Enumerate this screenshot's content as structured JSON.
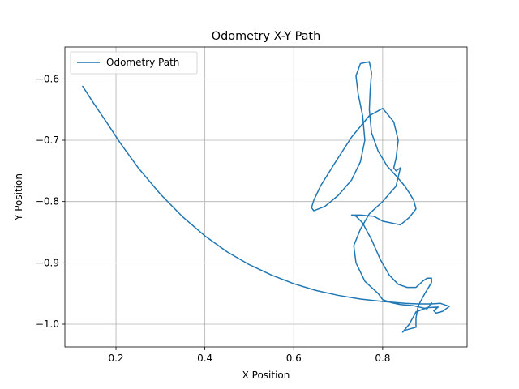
{
  "chart_data": {
    "type": "line",
    "title": "Odometry X-Y Path",
    "xlabel": "X Position",
    "ylabel": "Y Position",
    "xlim": [
      0.085,
      0.99
    ],
    "ylim": [
      -1.037,
      -0.548
    ],
    "xticks": [
      0.2,
      0.4,
      0.6,
      0.8
    ],
    "xtick_labels": [
      "0.2",
      "0.4",
      "0.6",
      "0.8"
    ],
    "yticks": [
      -1.0,
      -0.9,
      -0.8,
      -0.7,
      -0.6
    ],
    "ytick_labels": [
      "−1.0",
      "−0.9",
      "−0.8",
      "−0.7",
      "−0.6"
    ],
    "grid": true,
    "legend": {
      "position": "top-left"
    },
    "series": [
      {
        "name": "Odometry Path",
        "color": "#1f77b4",
        "x": [
          0.125,
          0.15,
          0.18,
          0.21,
          0.25,
          0.3,
          0.35,
          0.4,
          0.45,
          0.5,
          0.55,
          0.6,
          0.65,
          0.7,
          0.75,
          0.8,
          0.85,
          0.88,
          0.91,
          0.93,
          0.95,
          0.935,
          0.92,
          0.915,
          0.925,
          0.9,
          0.875,
          0.86,
          0.845,
          0.85,
          0.875,
          0.875,
          0.88,
          0.895,
          0.91,
          0.91,
          0.9,
          0.89,
          0.875,
          0.855,
          0.835,
          0.815,
          0.795,
          0.775,
          0.755,
          0.74,
          0.73,
          0.75,
          0.78,
          0.8,
          0.84,
          0.86,
          0.875,
          0.87,
          0.86,
          0.85,
          0.835,
          0.81,
          0.79,
          0.775,
          0.77,
          0.772,
          0.775,
          0.77,
          0.75,
          0.74,
          0.745,
          0.755,
          0.76,
          0.75,
          0.73,
          0.7,
          0.67,
          0.645,
          0.64,
          0.645,
          0.66,
          0.69,
          0.73,
          0.77,
          0.8,
          0.825,
          0.835,
          0.83,
          0.825,
          0.83,
          0.84,
          0.83,
          0.8,
          0.77,
          0.75,
          0.735,
          0.74,
          0.76,
          0.79,
          0.8,
          0.82,
          0.84,
          0.87,
          0.9,
          0.91
        ],
        "y": [
          -0.612,
          -0.64,
          -0.672,
          -0.705,
          -0.745,
          -0.788,
          -0.825,
          -0.856,
          -0.882,
          -0.903,
          -0.92,
          -0.934,
          -0.945,
          -0.953,
          -0.959,
          -0.963,
          -0.966,
          -0.967,
          -0.967,
          -0.966,
          -0.971,
          -0.979,
          -0.982,
          -0.978,
          -0.972,
          -0.973,
          -0.98,
          -1.0,
          -1.013,
          -1.01,
          -1.005,
          -0.99,
          -0.97,
          -0.95,
          -0.932,
          -0.925,
          -0.925,
          -0.93,
          -0.94,
          -0.94,
          -0.935,
          -0.92,
          -0.895,
          -0.862,
          -0.835,
          -0.824,
          -0.822,
          -0.822,
          -0.824,
          -0.832,
          -0.838,
          -0.826,
          -0.812,
          -0.798,
          -0.786,
          -0.775,
          -0.762,
          -0.742,
          -0.718,
          -0.688,
          -0.65,
          -0.618,
          -0.59,
          -0.572,
          -0.575,
          -0.595,
          -0.625,
          -0.66,
          -0.7,
          -0.735,
          -0.765,
          -0.79,
          -0.808,
          -0.815,
          -0.81,
          -0.798,
          -0.775,
          -0.74,
          -0.695,
          -0.66,
          -0.648,
          -0.67,
          -0.7,
          -0.73,
          -0.745,
          -0.75,
          -0.745,
          -0.775,
          -0.8,
          -0.82,
          -0.845,
          -0.872,
          -0.9,
          -0.93,
          -0.95,
          -0.96,
          -0.965,
          -0.968,
          -0.97,
          -0.975,
          -0.965
        ]
      }
    ]
  }
}
